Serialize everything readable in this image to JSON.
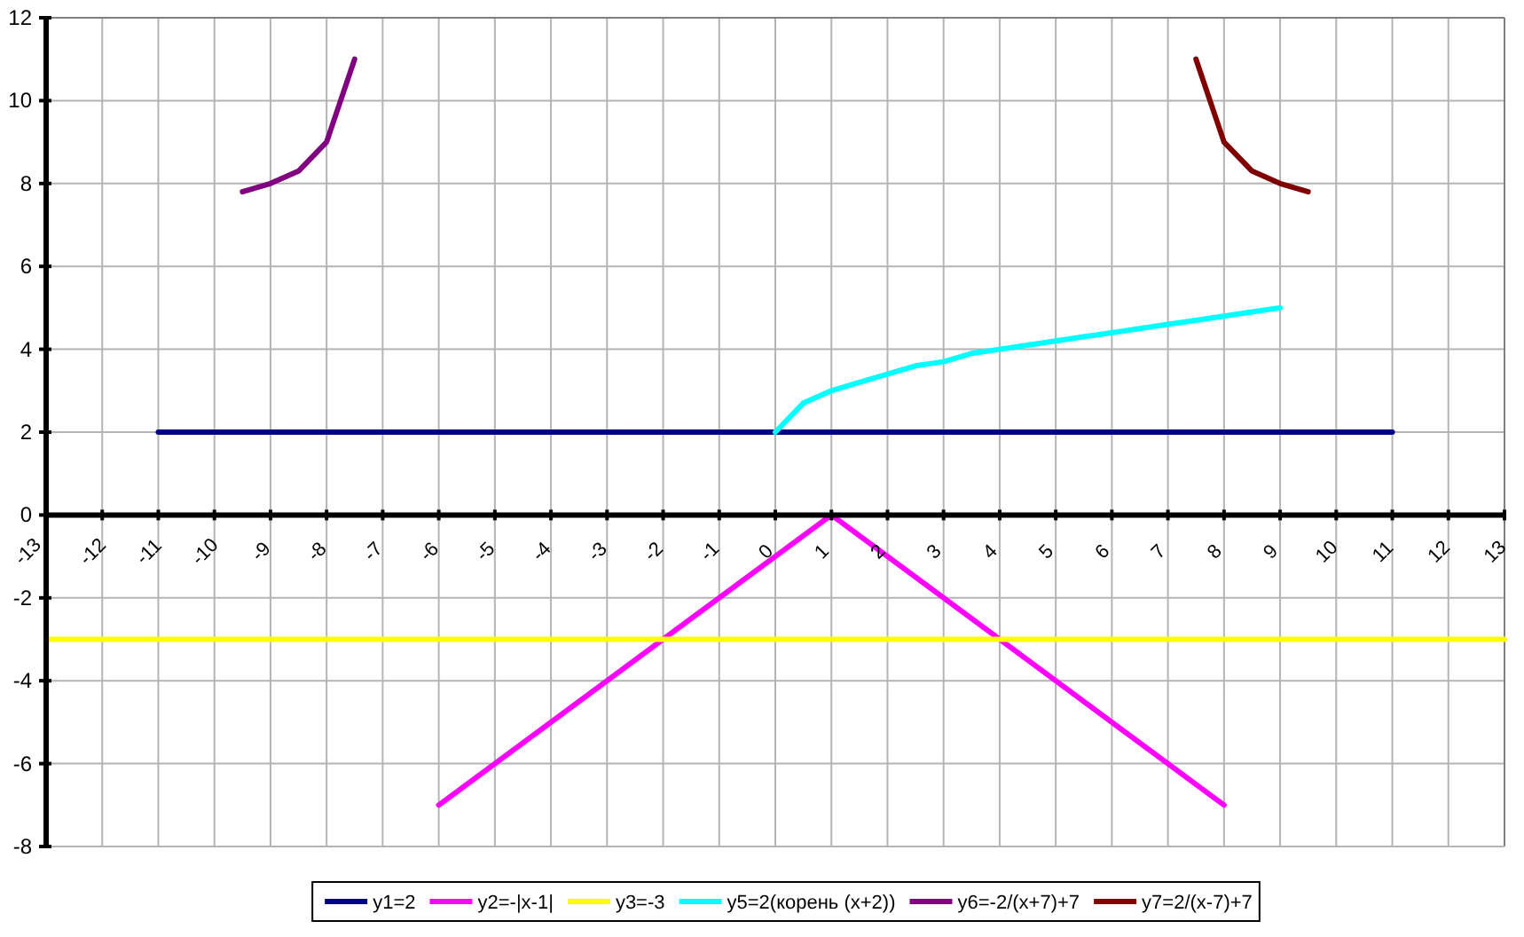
{
  "chart_data": {
    "type": "line",
    "xlim": [
      -13,
      13
    ],
    "xticks": [
      -13,
      -12,
      -11,
      -10,
      -9,
      -8,
      -7,
      -6,
      -5,
      -4,
      -3,
      -2,
      -1,
      0,
      1,
      2,
      3,
      4,
      5,
      6,
      7,
      8,
      9,
      10,
      11,
      12,
      13
    ],
    "ylim": [
      -8,
      12
    ],
    "yticks": [
      -8,
      -6,
      -4,
      -2,
      0,
      2,
      4,
      6,
      8,
      10,
      12
    ],
    "grid": true,
    "legend": "bottom",
    "series": [
      {
        "name": "y1=2",
        "color": "#000080",
        "x": [
          -11,
          11
        ],
        "values": [
          2,
          2
        ]
      },
      {
        "name": "y2=-|x-1|",
        "color": "#ff00ff",
        "x": [
          -6,
          1,
          8
        ],
        "values": [
          -7,
          0,
          -7
        ]
      },
      {
        "name": "y3=-3",
        "color": "#ffff00",
        "x": [
          -13,
          13
        ],
        "values": [
          -3,
          -3
        ]
      },
      {
        "name": "y5=2(корень (x+2))",
        "color": "#00ffff",
        "x": [
          0,
          0.5,
          1,
          1.5,
          2,
          2.5,
          3,
          3.5,
          4,
          4.5,
          5,
          5.5,
          6,
          6.5,
          7,
          7.5,
          8,
          8.5,
          9
        ],
        "values": [
          2,
          2.7,
          3,
          3.2,
          3.4,
          3.6,
          3.7,
          3.9,
          4,
          4.1,
          4.2,
          4.3,
          4.4,
          4.5,
          4.6,
          4.7,
          4.8,
          4.9,
          5
        ]
      },
      {
        "name": "y6=-2/(x+7)+7",
        "color": "#800080",
        "x": [
          -9.5,
          -9,
          -8.5,
          -8,
          -7.5
        ],
        "values": [
          7.8,
          8,
          8.3,
          9,
          11
        ]
      },
      {
        "name": "y7=2/(x-7)+7",
        "color": "#800000",
        "x": [
          7.5,
          8,
          8.5,
          9,
          9.5
        ],
        "values": [
          11,
          9,
          8.3,
          8,
          7.8
        ]
      }
    ]
  }
}
